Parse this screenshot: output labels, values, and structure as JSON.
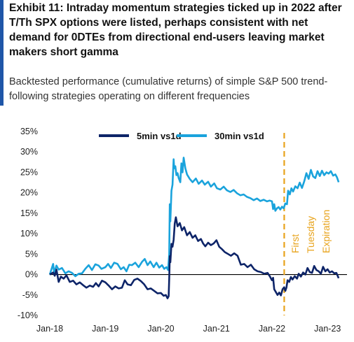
{
  "header": {
    "title": "Exhibit 11: Intraday momentum strategies ticked up in 2022 after T/Th SPX options were listed, perhaps consistent with net demand for 0DTEs from directional end-users leaving market makers short gamma",
    "subtitle": "Backtested performance (cumulative returns) of simple S&P 500 trend-following strategies operating on different frequencies",
    "accent_color": "#1f56a8"
  },
  "chart_data": {
    "type": "line",
    "ylim": [
      -10,
      35
    ],
    "yticks": [
      -10,
      -5,
      0,
      5,
      10,
      15,
      20,
      25,
      30,
      35
    ],
    "ytick_labels": [
      "-10%",
      "-5%",
      "0%",
      "5%",
      "10%",
      "15%",
      "20%",
      "25%",
      "30%",
      "35%"
    ],
    "xlim": [
      2018.0,
      2023.35
    ],
    "xticks": [
      2018,
      2019,
      2020,
      2021,
      2022,
      2023
    ],
    "xtick_labels": [
      "Jan-18",
      "Jan-19",
      "Jan-20",
      "Jan-21",
      "Jan-22",
      "Jan-23"
    ],
    "grid": false,
    "legend_position": "top",
    "series": [
      {
        "name": "5min vs1d",
        "color": "#0d2468",
        "points": [
          [
            2018.0,
            0.0
          ],
          [
            2018.06,
            0.5
          ],
          [
            2018.09,
            -0.3
          ],
          [
            2018.12,
            1.2
          ],
          [
            2018.16,
            -1.8
          ],
          [
            2018.2,
            -0.5
          ],
          [
            2018.25,
            -1.0
          ],
          [
            2018.3,
            -0.2
          ],
          [
            2018.36,
            -1.8
          ],
          [
            2018.42,
            -1.5
          ],
          [
            2018.48,
            -2.4
          ],
          [
            2018.54,
            -1.9
          ],
          [
            2018.6,
            -2.6
          ],
          [
            2018.66,
            -3.2
          ],
          [
            2018.72,
            -2.7
          ],
          [
            2018.78,
            -3.0
          ],
          [
            2018.83,
            -2.1
          ],
          [
            2018.88,
            -2.9
          ],
          [
            2018.94,
            -1.5
          ],
          [
            2019.0,
            -1.9
          ],
          [
            2019.06,
            -2.7
          ],
          [
            2019.12,
            -3.6
          ],
          [
            2019.18,
            -2.9
          ],
          [
            2019.24,
            -3.4
          ],
          [
            2019.3,
            -3.2
          ],
          [
            2019.35,
            -1.4
          ],
          [
            2019.4,
            -2.4
          ],
          [
            2019.46,
            -2.6
          ],
          [
            2019.52,
            -1.3
          ],
          [
            2019.58,
            -1.0
          ],
          [
            2019.64,
            -1.6
          ],
          [
            2019.7,
            -2.4
          ],
          [
            2019.76,
            -3.6
          ],
          [
            2019.82,
            -3.4
          ],
          [
            2019.88,
            -4.0
          ],
          [
            2019.94,
            -4.6
          ],
          [
            2020.0,
            -4.5
          ],
          [
            2020.05,
            -5.2
          ],
          [
            2020.09,
            -5.0
          ],
          [
            2020.12,
            -5.8
          ],
          [
            2020.14,
            -5.3
          ],
          [
            2020.15,
            -1.0
          ],
          [
            2020.16,
            4.5
          ],
          [
            2020.17,
            3.0
          ],
          [
            2020.19,
            7.5
          ],
          [
            2020.21,
            6.8
          ],
          [
            2020.23,
            8.5
          ],
          [
            2020.25,
            12.5
          ],
          [
            2020.27,
            14.0
          ],
          [
            2020.3,
            11.8
          ],
          [
            2020.34,
            12.6
          ],
          [
            2020.38,
            10.8
          ],
          [
            2020.42,
            11.6
          ],
          [
            2020.47,
            9.6
          ],
          [
            2020.52,
            10.4
          ],
          [
            2020.57,
            9.0
          ],
          [
            2020.62,
            9.6
          ],
          [
            2020.67,
            8.2
          ],
          [
            2020.72,
            8.7
          ],
          [
            2020.76,
            7.6
          ],
          [
            2020.8,
            6.9
          ],
          [
            2020.85,
            7.8
          ],
          [
            2020.9,
            7.2
          ],
          [
            2020.95,
            7.6
          ],
          [
            2021.0,
            8.4
          ],
          [
            2021.05,
            6.8
          ],
          [
            2021.1,
            6.2
          ],
          [
            2021.15,
            5.5
          ],
          [
            2021.2,
            5.1
          ],
          [
            2021.26,
            4.6
          ],
          [
            2021.32,
            5.2
          ],
          [
            2021.38,
            4.6
          ],
          [
            2021.44,
            2.4
          ],
          [
            2021.5,
            2.6
          ],
          [
            2021.56,
            1.8
          ],
          [
            2021.62,
            2.4
          ],
          [
            2021.68,
            1.3
          ],
          [
            2021.74,
            0.8
          ],
          [
            2021.8,
            0.6
          ],
          [
            2021.86,
            0.2
          ],
          [
            2021.92,
            0.4
          ],
          [
            2021.96,
            -0.4
          ],
          [
            2022.0,
            -1.4
          ],
          [
            2022.02,
            -0.8
          ],
          [
            2022.04,
            -3.6
          ],
          [
            2022.07,
            -4.3
          ],
          [
            2022.1,
            -5.0
          ],
          [
            2022.13,
            -4.4
          ],
          [
            2022.16,
            -5.1
          ],
          [
            2022.19,
            -3.6
          ],
          [
            2022.22,
            -3.1
          ],
          [
            2022.24,
            -4.0
          ],
          [
            2022.26,
            -3.2
          ],
          [
            2022.28,
            -1.4
          ],
          [
            2022.31,
            -1.8
          ],
          [
            2022.34,
            -0.6
          ],
          [
            2022.37,
            -1.2
          ],
          [
            2022.41,
            -0.4
          ],
          [
            2022.45,
            -1.0
          ],
          [
            2022.48,
            0.2
          ],
          [
            2022.52,
            -0.5
          ],
          [
            2022.56,
            0.5
          ],
          [
            2022.6,
            0.0
          ],
          [
            2022.64,
            1.6
          ],
          [
            2022.68,
            0.6
          ],
          [
            2022.72,
            0.4
          ],
          [
            2022.76,
            2.1
          ],
          [
            2022.8,
            1.1
          ],
          [
            2022.84,
            0.8
          ],
          [
            2022.88,
            0.2
          ],
          [
            2022.92,
            1.9
          ],
          [
            2022.96,
            0.8
          ],
          [
            2023.0,
            1.3
          ],
          [
            2023.04,
            0.5
          ],
          [
            2023.08,
            0.8
          ],
          [
            2023.12,
            0.3
          ],
          [
            2023.16,
            0.4
          ],
          [
            2023.2,
            -0.9
          ]
        ]
      },
      {
        "name": "30min vs1d",
        "color": "#1aa3dc",
        "points": [
          [
            2018.0,
            0.0
          ],
          [
            2018.06,
            2.6
          ],
          [
            2018.08,
            0.4
          ],
          [
            2018.12,
            2.2
          ],
          [
            2018.16,
            1.2
          ],
          [
            2018.22,
            1.6
          ],
          [
            2018.28,
            0.3
          ],
          [
            2018.34,
            0.8
          ],
          [
            2018.4,
            0.4
          ],
          [
            2018.46,
            -0.4
          ],
          [
            2018.52,
            0.2
          ],
          [
            2018.58,
            0.3
          ],
          [
            2018.64,
            1.4
          ],
          [
            2018.7,
            2.3
          ],
          [
            2018.76,
            1.1
          ],
          [
            2018.82,
            2.5
          ],
          [
            2018.88,
            2.2
          ],
          [
            2018.93,
            1.4
          ],
          [
            2019.0,
            1.8
          ],
          [
            2019.05,
            2.6
          ],
          [
            2019.1,
            1.6
          ],
          [
            2019.16,
            2.9
          ],
          [
            2019.22,
            2.6
          ],
          [
            2019.28,
            1.3
          ],
          [
            2019.33,
            1.8
          ],
          [
            2019.38,
            0.8
          ],
          [
            2019.43,
            2.4
          ],
          [
            2019.48,
            2.3
          ],
          [
            2019.54,
            2.9
          ],
          [
            2019.6,
            1.8
          ],
          [
            2019.66,
            3.1
          ],
          [
            2019.71,
            3.8
          ],
          [
            2019.76,
            2.3
          ],
          [
            2019.81,
            3.2
          ],
          [
            2019.87,
            1.8
          ],
          [
            2019.92,
            2.9
          ],
          [
            2019.97,
            1.7
          ],
          [
            2020.02,
            2.3
          ],
          [
            2020.06,
            1.4
          ],
          [
            2020.1,
            1.8
          ],
          [
            2020.13,
            1.1
          ],
          [
            2020.15,
            5.0
          ],
          [
            2020.16,
            17.2
          ],
          [
            2020.17,
            13.0
          ],
          [
            2020.19,
            20.5
          ],
          [
            2020.21,
            22.0
          ],
          [
            2020.23,
            28.2
          ],
          [
            2020.24,
            26.0
          ],
          [
            2020.26,
            26.5
          ],
          [
            2020.28,
            24.3
          ],
          [
            2020.3,
            24.8
          ],
          [
            2020.32,
            23.6
          ],
          [
            2020.35,
            22.6
          ],
          [
            2020.37,
            27.2
          ],
          [
            2020.39,
            25.0
          ],
          [
            2020.41,
            28.6
          ],
          [
            2020.44,
            26.0
          ],
          [
            2020.47,
            24.5
          ],
          [
            2020.52,
            23.4
          ],
          [
            2020.57,
            22.6
          ],
          [
            2020.63,
            23.5
          ],
          [
            2020.68,
            22.2
          ],
          [
            2020.74,
            23.0
          ],
          [
            2020.79,
            22.0
          ],
          [
            2020.85,
            22.7
          ],
          [
            2020.9,
            21.5
          ],
          [
            2020.96,
            22.3
          ],
          [
            2021.01,
            21.1
          ],
          [
            2021.07,
            20.8
          ],
          [
            2021.13,
            21.5
          ],
          [
            2021.19,
            20.6
          ],
          [
            2021.25,
            20.2
          ],
          [
            2021.31,
            20.7
          ],
          [
            2021.37,
            19.9
          ],
          [
            2021.43,
            19.4
          ],
          [
            2021.49,
            19.6
          ],
          [
            2021.55,
            19.0
          ],
          [
            2021.61,
            18.7
          ],
          [
            2021.67,
            18.2
          ],
          [
            2021.73,
            18.6
          ],
          [
            2021.79,
            18.0
          ],
          [
            2021.85,
            18.3
          ],
          [
            2021.91,
            17.9
          ],
          [
            2021.96,
            18.1
          ],
          [
            2022.0,
            17.9
          ],
          [
            2022.02,
            16.0
          ],
          [
            2022.04,
            17.2
          ],
          [
            2022.06,
            15.6
          ],
          [
            2022.09,
            16.2
          ],
          [
            2022.12,
            16.5
          ],
          [
            2022.15,
            15.9
          ],
          [
            2022.18,
            16.6
          ],
          [
            2022.21,
            16.2
          ],
          [
            2022.24,
            17.4
          ],
          [
            2022.27,
            17.2
          ],
          [
            2022.29,
            20.5
          ],
          [
            2022.32,
            19.6
          ],
          [
            2022.35,
            21.1
          ],
          [
            2022.38,
            20.3
          ],
          [
            2022.42,
            21.6
          ],
          [
            2022.46,
            21.1
          ],
          [
            2022.5,
            22.5
          ],
          [
            2022.54,
            21.2
          ],
          [
            2022.58,
            22.8
          ],
          [
            2022.62,
            24.8
          ],
          [
            2022.66,
            23.4
          ],
          [
            2022.7,
            25.6
          ],
          [
            2022.74,
            24.0
          ],
          [
            2022.78,
            23.6
          ],
          [
            2022.82,
            25.3
          ],
          [
            2022.86,
            24.1
          ],
          [
            2022.9,
            25.4
          ],
          [
            2022.94,
            24.3
          ],
          [
            2022.98,
            25.0
          ],
          [
            2023.02,
            24.7
          ],
          [
            2023.06,
            25.3
          ],
          [
            2023.1,
            24.2
          ],
          [
            2023.14,
            24.5
          ],
          [
            2023.17,
            23.8
          ],
          [
            2023.2,
            22.6
          ]
        ]
      }
    ],
    "annotations": [
      {
        "type": "vertical-dashed-line",
        "x": 2022.22,
        "color": "#e8a31b",
        "labels": [
          "First",
          "Tuesday",
          "Expiration"
        ]
      }
    ]
  }
}
